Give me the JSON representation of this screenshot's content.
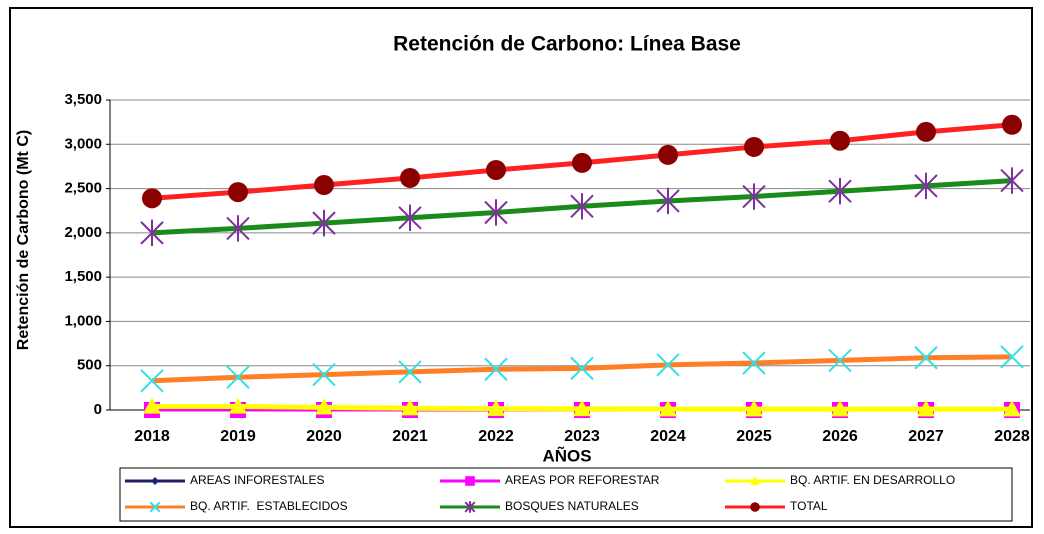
{
  "chart_data": {
    "type": "line",
    "title": "Retención de Carbono: Línea Base",
    "xlabel": "AÑOS",
    "ylabel": "Retención de Carbono (Mt C)",
    "categories": [
      "2018",
      "2019",
      "2020",
      "2021",
      "2022",
      "2023",
      "2024",
      "2025",
      "2026",
      "2027",
      "2028"
    ],
    "ylim": [
      0,
      3500
    ],
    "yticks": [
      0,
      500,
      {
        "value": 1000,
        "label": "1,000"
      },
      {
        "value": 1500,
        "label": "1,500"
      },
      {
        "value": 2000,
        "label": "2,000"
      },
      {
        "value": 2500,
        "label": "2,500"
      },
      {
        "value": 3000,
        "label": "3,000"
      },
      {
        "value": 3500,
        "label": "3,500"
      }
    ],
    "grid": true,
    "legend": "bottom",
    "series": [
      {
        "name": "AREAS INFORESTALES",
        "color": "#1f1f5f",
        "marker": "diamond",
        "marker_color": "#1f1f7f",
        "values": [
          0,
          0,
          0,
          0,
          0,
          0,
          0,
          0,
          0,
          0,
          0
        ]
      },
      {
        "name": "AREAS POR REFORESTAR",
        "color": "#ff00ff",
        "marker": "square",
        "marker_color": "#ff00ff",
        "values": [
          0,
          0,
          0,
          0,
          0,
          0,
          0,
          0,
          0,
          0,
          0
        ]
      },
      {
        "name": "BQ. ARTIF. EN DESARROLLO",
        "color": "#ffff00",
        "marker": "triangle",
        "marker_color": "#ffff00",
        "values": [
          40,
          40,
          30,
          20,
          15,
          12,
          10,
          10,
          10,
          10,
          10
        ]
      },
      {
        "name": "BQ. ARTIF.  ESTABLECIDOS",
        "color": "#ff7f27",
        "marker": "x",
        "marker_color": "#33e0e8",
        "values": [
          330,
          370,
          400,
          430,
          460,
          470,
          510,
          530,
          560,
          590,
          600
        ]
      },
      {
        "name": "BOSQUES NATURALES",
        "color": "#1a8a1a",
        "marker": "star",
        "marker_color": "#7f2f9f",
        "values": [
          2000,
          2050,
          2110,
          2170,
          2230,
          2300,
          2360,
          2410,
          2470,
          2530,
          2590
        ]
      },
      {
        "name": "TOTAL",
        "color": "#ff2020",
        "marker": "circle",
        "marker_color": "#8b0000",
        "values": [
          2390,
          2460,
          2540,
          2620,
          2710,
          2790,
          2880,
          2970,
          3040,
          3140,
          3220
        ]
      }
    ]
  }
}
